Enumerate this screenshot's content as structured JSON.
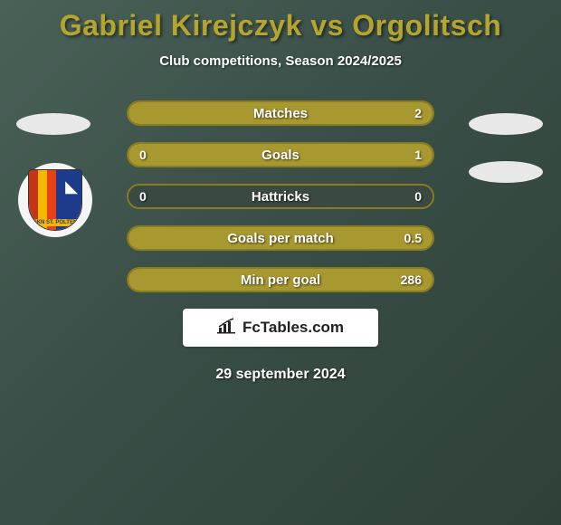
{
  "title": "Gabriel Kirejczyk vs Orgolitsch",
  "subtitle": "Club competitions, Season 2024/2025",
  "colors": {
    "title": "#b5a52e",
    "bar_fill": "#a89830",
    "bar_bg": "#3a4a42",
    "text": "#ffffff"
  },
  "rows": [
    {
      "label": "Matches",
      "left": "",
      "right": "2",
      "fill_left_pct": 47,
      "fill_right_pct": 53,
      "show_left": false
    },
    {
      "label": "Goals",
      "left": "0",
      "right": "1",
      "fill_left_pct": 0,
      "fill_right_pct": 100,
      "show_left": true
    },
    {
      "label": "Hattricks",
      "left": "0",
      "right": "0",
      "fill_left_pct": 0,
      "fill_right_pct": 0,
      "show_left": true
    },
    {
      "label": "Goals per match",
      "left": "",
      "right": "0.5",
      "fill_left_pct": 0,
      "fill_right_pct": 100,
      "show_left": false
    },
    {
      "label": "Min per goal",
      "left": "",
      "right": "286",
      "fill_left_pct": 0,
      "fill_right_pct": 100,
      "show_left": false
    }
  ],
  "logo": "FcTables.com",
  "date": "29 september 2024",
  "badge_text": "SKN ST. PÖLTEN"
}
